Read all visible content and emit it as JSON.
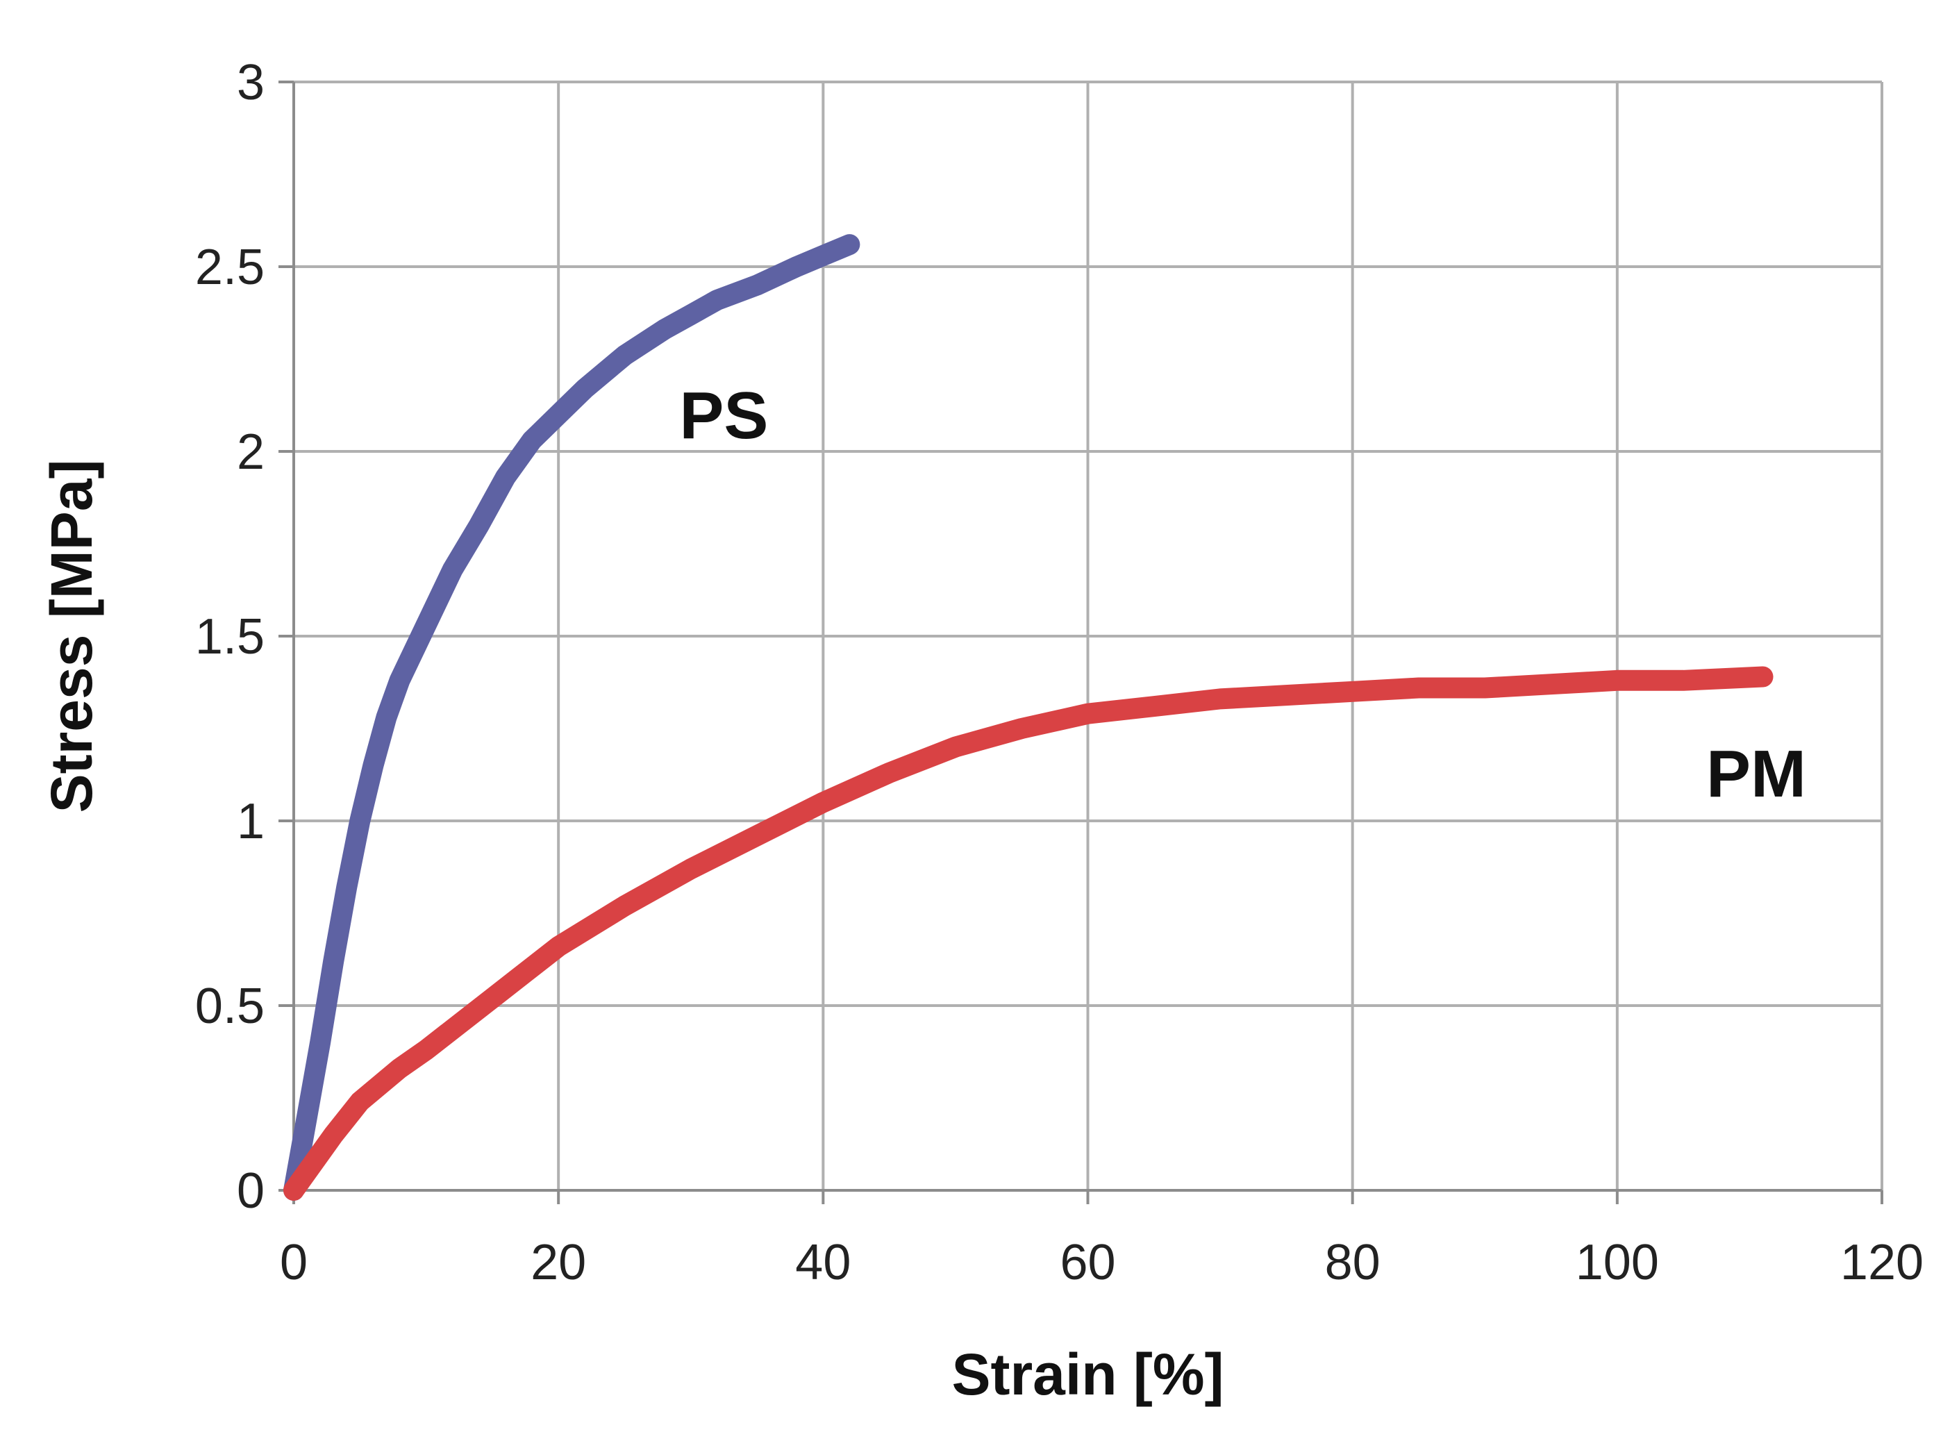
{
  "chart_data": {
    "type": "line",
    "title": "",
    "xlabel": "Strain [%]",
    "ylabel": "Stress [MPa]",
    "xlim": [
      0,
      120
    ],
    "ylim": [
      0,
      3
    ],
    "xticks": [
      0,
      20,
      40,
      60,
      80,
      100,
      120
    ],
    "yticks": [
      0,
      0.5,
      1,
      1.5,
      2,
      2.5,
      3
    ],
    "xtick_labels": [
      "0",
      "20",
      "40",
      "60",
      "80",
      "100",
      "120"
    ],
    "ytick_labels": [
      "0",
      "0.5",
      "1",
      "1.5",
      "2",
      "2.5",
      "3"
    ],
    "grid": true,
    "legend": "inline labels",
    "series": [
      {
        "name": "PS",
        "color": "#5e62a3",
        "x": [
          0,
          1,
          2,
          3,
          4,
          5,
          6,
          7,
          8,
          10,
          12,
          14,
          16,
          18,
          20,
          22,
          25,
          28,
          30,
          32,
          35,
          38,
          40,
          42
        ],
        "y": [
          0,
          0.2,
          0.4,
          0.62,
          0.82,
          1.0,
          1.15,
          1.28,
          1.38,
          1.53,
          1.68,
          1.8,
          1.93,
          2.03,
          2.1,
          2.17,
          2.26,
          2.33,
          2.37,
          2.41,
          2.45,
          2.5,
          2.53,
          2.56
        ]
      },
      {
        "name": "PM",
        "color": "#d94244",
        "x": [
          0,
          1,
          3,
          5,
          8,
          10,
          15,
          20,
          25,
          30,
          35,
          40,
          45,
          50,
          55,
          60,
          65,
          70,
          75,
          80,
          85,
          90,
          95,
          100,
          105,
          111
        ],
        "y": [
          0,
          0.05,
          0.15,
          0.24,
          0.33,
          0.38,
          0.52,
          0.66,
          0.77,
          0.87,
          0.96,
          1.05,
          1.13,
          1.2,
          1.25,
          1.29,
          1.31,
          1.33,
          1.34,
          1.35,
          1.36,
          1.36,
          1.37,
          1.38,
          1.38,
          1.39
        ]
      }
    ],
    "annotations": [
      {
        "text": "PS",
        "x": 32.5,
        "y": 2.1
      },
      {
        "text": "PM",
        "x": 110.5,
        "y": 1.13
      }
    ]
  }
}
